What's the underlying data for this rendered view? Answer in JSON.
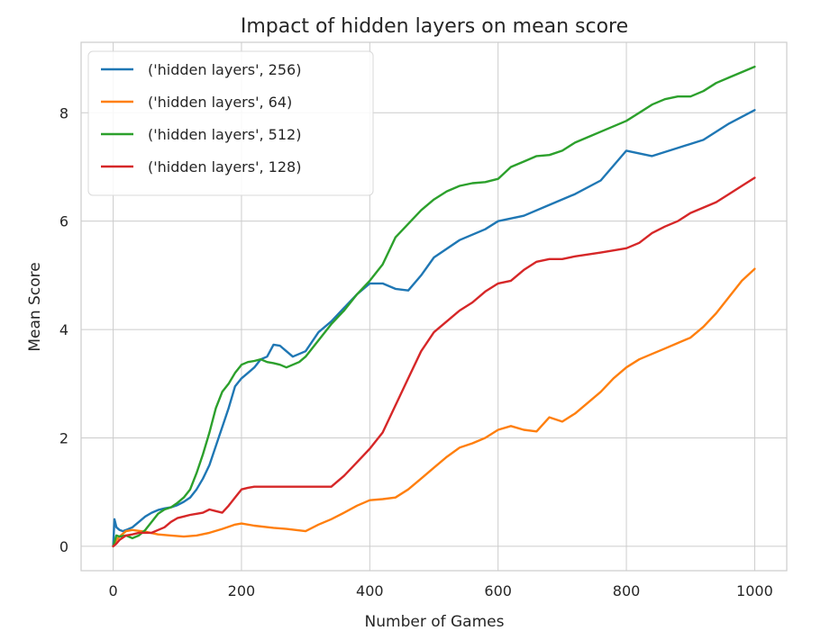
{
  "chart_data": {
    "type": "line",
    "title": "Impact of hidden layers on mean score",
    "xlabel": "Number of Games",
    "ylabel": "Mean Score",
    "xlim": [
      -50,
      1050
    ],
    "ylim": [
      -0.45,
      9.3
    ],
    "xticks": [
      0,
      200,
      400,
      600,
      800,
      1000
    ],
    "yticks": [
      0,
      2,
      4,
      6,
      8
    ],
    "grid": true,
    "legend_position": "top-left",
    "series": [
      {
        "name": "('hidden layers', 256)",
        "color": "#1f77b4",
        "x": [
          0,
          2,
          5,
          10,
          15,
          20,
          30,
          40,
          50,
          60,
          70,
          80,
          90,
          100,
          110,
          120,
          130,
          140,
          150,
          160,
          170,
          180,
          190,
          200,
          210,
          220,
          230,
          240,
          250,
          260,
          270,
          280,
          290,
          300,
          320,
          340,
          360,
          380,
          400,
          420,
          440,
          460,
          480,
          500,
          540,
          580,
          600,
          640,
          680,
          720,
          760,
          800,
          840,
          880,
          920,
          960,
          1000
        ],
        "y": [
          0,
          0.5,
          0.35,
          0.3,
          0.28,
          0.3,
          0.35,
          0.45,
          0.55,
          0.62,
          0.67,
          0.7,
          0.72,
          0.76,
          0.82,
          0.9,
          1.05,
          1.25,
          1.5,
          1.85,
          2.2,
          2.55,
          2.95,
          3.1,
          3.2,
          3.3,
          3.45,
          3.5,
          3.72,
          3.7,
          3.6,
          3.5,
          3.55,
          3.6,
          3.95,
          4.15,
          4.4,
          4.65,
          4.85,
          4.85,
          4.75,
          4.72,
          5.0,
          5.33,
          5.65,
          5.85,
          6.0,
          6.1,
          6.3,
          6.5,
          6.75,
          7.3,
          7.2,
          7.35,
          7.5,
          7.8,
          8.05
        ]
      },
      {
        "name": "('hidden layers', 64)",
        "color": "#ff7f0e",
        "x": [
          0,
          5,
          10,
          20,
          30,
          50,
          70,
          90,
          110,
          130,
          150,
          170,
          190,
          200,
          220,
          250,
          270,
          300,
          320,
          340,
          360,
          380,
          400,
          420,
          440,
          460,
          480,
          500,
          520,
          540,
          560,
          580,
          600,
          620,
          640,
          660,
          680,
          700,
          720,
          740,
          760,
          780,
          800,
          820,
          840,
          860,
          880,
          900,
          920,
          940,
          960,
          980,
          1000
        ],
        "y": [
          0,
          0.12,
          0.18,
          0.28,
          0.3,
          0.27,
          0.22,
          0.2,
          0.18,
          0.2,
          0.25,
          0.32,
          0.4,
          0.42,
          0.38,
          0.34,
          0.32,
          0.28,
          0.4,
          0.5,
          0.62,
          0.75,
          0.85,
          0.87,
          0.9,
          1.05,
          1.25,
          1.45,
          1.65,
          1.82,
          1.9,
          2.0,
          2.15,
          2.22,
          2.15,
          2.12,
          2.38,
          2.3,
          2.45,
          2.65,
          2.85,
          3.1,
          3.3,
          3.45,
          3.55,
          3.65,
          3.75,
          3.85,
          4.05,
          4.3,
          4.6,
          4.9,
          5.12
        ]
      },
      {
        "name": "('hidden layers', 512)",
        "color": "#2ca02c",
        "x": [
          0,
          5,
          10,
          20,
          30,
          40,
          50,
          60,
          70,
          80,
          90,
          100,
          110,
          120,
          130,
          140,
          150,
          160,
          170,
          180,
          190,
          200,
          210,
          220,
          230,
          240,
          250,
          260,
          270,
          280,
          290,
          300,
          320,
          340,
          360,
          380,
          400,
          420,
          440,
          460,
          480,
          500,
          520,
          540,
          560,
          580,
          600,
          620,
          640,
          660,
          680,
          700,
          720,
          740,
          760,
          780,
          800,
          820,
          840,
          860,
          880,
          900,
          920,
          940,
          960,
          980,
          1000
        ],
        "y": [
          0,
          0.2,
          0.18,
          0.2,
          0.15,
          0.2,
          0.3,
          0.45,
          0.6,
          0.68,
          0.72,
          0.8,
          0.9,
          1.05,
          1.35,
          1.7,
          2.1,
          2.55,
          2.85,
          3.0,
          3.2,
          3.35,
          3.4,
          3.42,
          3.45,
          3.4,
          3.38,
          3.35,
          3.3,
          3.35,
          3.4,
          3.5,
          3.8,
          4.1,
          4.35,
          4.65,
          4.9,
          5.2,
          5.7,
          5.95,
          6.2,
          6.4,
          6.55,
          6.65,
          6.7,
          6.72,
          6.78,
          7.0,
          7.1,
          7.2,
          7.22,
          7.3,
          7.45,
          7.55,
          7.65,
          7.75,
          7.85,
          8.0,
          8.15,
          8.25,
          8.3,
          8.3,
          8.4,
          8.55,
          8.65,
          8.75,
          8.85
        ]
      },
      {
        "name": "('hidden layers', 128)",
        "color": "#d62728",
        "x": [
          0,
          5,
          10,
          20,
          30,
          40,
          50,
          60,
          70,
          80,
          90,
          100,
          110,
          120,
          130,
          140,
          150,
          160,
          170,
          180,
          190,
          200,
          210,
          220,
          240,
          260,
          280,
          300,
          320,
          340,
          360,
          380,
          400,
          420,
          440,
          460,
          480,
          500,
          520,
          540,
          560,
          580,
          600,
          620,
          640,
          660,
          680,
          700,
          720,
          760,
          800,
          820,
          840,
          860,
          880,
          900,
          920,
          940,
          960,
          980,
          1000
        ],
        "y": [
          0,
          0.05,
          0.12,
          0.2,
          0.22,
          0.25,
          0.25,
          0.25,
          0.3,
          0.35,
          0.45,
          0.52,
          0.55,
          0.58,
          0.6,
          0.62,
          0.68,
          0.65,
          0.62,
          0.75,
          0.9,
          1.05,
          1.08,
          1.1,
          1.1,
          1.1,
          1.1,
          1.1,
          1.1,
          1.1,
          1.3,
          1.55,
          1.8,
          2.1,
          2.6,
          3.1,
          3.6,
          3.95,
          4.15,
          4.35,
          4.5,
          4.7,
          4.85,
          4.9,
          5.1,
          5.25,
          5.3,
          5.3,
          5.35,
          5.42,
          5.5,
          5.6,
          5.78,
          5.9,
          6.0,
          6.15,
          6.25,
          6.35,
          6.5,
          6.65,
          6.8
        ]
      }
    ]
  }
}
